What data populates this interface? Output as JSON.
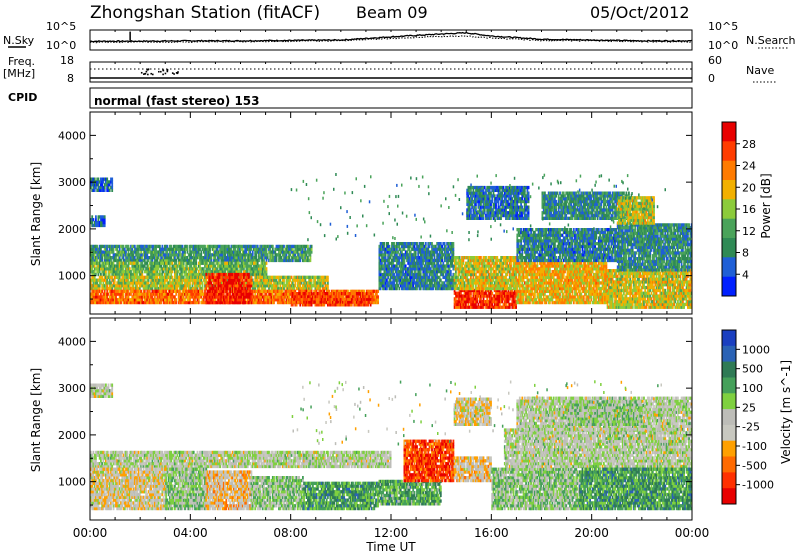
{
  "header": {
    "station": "Zhongshan Station (fitACF)",
    "beam": "Beam 09",
    "date": "05/Oct/2012"
  },
  "strip_labels": {
    "nsky": "N.Sky",
    "nsearch": "N.Search",
    "freq_line1": "Freq.",
    "freq_line2": "[MHz]",
    "nave": "Nave",
    "cpid": "CPID",
    "cpid_value": "normal (fast stereo) 153"
  },
  "chart_data": [
    {
      "type": "line",
      "panel": "noise",
      "left_ticks": [
        "10^5",
        "10^0"
      ],
      "right_ticks": [
        "10^5",
        "10^0"
      ],
      "x": [
        0,
        2,
        4,
        6,
        8,
        10,
        12,
        14,
        15,
        16,
        18,
        20,
        22,
        24
      ],
      "series": [
        {
          "name": "N.Sky",
          "values": [
            2.2,
            2.2,
            2.3,
            2.3,
            2.4,
            2.5,
            3.3,
            4.0,
            4.3,
            3.5,
            2.7,
            2.5,
            2.3,
            2.3
          ]
        },
        {
          "name": "N.Search",
          "values": [
            1.9,
            2.0,
            2.0,
            2.1,
            2.2,
            2.3,
            2.9,
            3.4,
            3.5,
            3.0,
            2.4,
            2.3,
            2.1,
            2.0
          ]
        }
      ],
      "ylim": [
        0,
        5
      ],
      "spikes_at": [
        1.6
      ]
    },
    {
      "type": "line",
      "panel": "frequency",
      "left_ticks": [
        "18",
        "8"
      ],
      "right_ticks": [
        "60",
        "0"
      ],
      "ylim": [
        8,
        18
      ],
      "series": [
        {
          "name": "Freq.",
          "values": [
            10,
            10,
            10,
            10,
            10,
            10,
            10,
            10,
            10,
            10,
            10,
            10,
            10,
            10
          ]
        },
        {
          "name": "Nave",
          "values": [
            14.5,
            14.5,
            14.5,
            14.5,
            14.5,
            14.5,
            14.5,
            14.5,
            14.5,
            14.5,
            14.5,
            14.5,
            14.5,
            14.5
          ]
        }
      ],
      "x": [
        0,
        2,
        4,
        6,
        8,
        10,
        12,
        14,
        15,
        16,
        18,
        20,
        22,
        24
      ]
    },
    {
      "type": "heatmap",
      "panel": "power",
      "ylabel": "Slant Range [km]",
      "yticks": [
        1000,
        2000,
        3000,
        4000
      ],
      "ylim": [
        180,
        4500
      ],
      "xlim": [
        0,
        24
      ],
      "colorbar_label": "Power [dB]",
      "colorbar_ticks": [
        "28",
        "24",
        "20",
        "16",
        "12",
        "8",
        "4"
      ],
      "colorbar_colors": [
        "#0020ff",
        "#1f5fd6",
        "#2f8a55",
        "#4aa35a",
        "#8ccb3b",
        "#f2b000",
        "#ff7b00",
        "#ff3c00",
        "#e80000"
      ],
      "vmin": 0,
      "vmax": 32,
      "bands": [
        {
          "t0": 0.0,
          "t1": 0.9,
          "r0": 2800,
          "r1": 3100,
          "v": 6
        },
        {
          "t0": 0.0,
          "t1": 0.6,
          "r0": 2050,
          "r1": 2250,
          "v": 6
        },
        {
          "t0": 0.0,
          "t1": 8.8,
          "r0": 1300,
          "r1": 1650,
          "v": 10
        },
        {
          "t0": 0.0,
          "t1": 7.0,
          "r0": 1000,
          "r1": 1300,
          "v": 14
        },
        {
          "t0": 0.0,
          "t1": 9.5,
          "r0": 700,
          "r1": 1000,
          "v": 17
        },
        {
          "t0": 0.0,
          "t1": 11.5,
          "r0": 400,
          "r1": 700,
          "v": 24
        },
        {
          "t0": 4.6,
          "t1": 6.4,
          "r0": 400,
          "r1": 1050,
          "v": 29
        },
        {
          "t0": 8.0,
          "t1": 11.2,
          "r0": 350,
          "r1": 600,
          "v": 27
        },
        {
          "t0": 11.5,
          "t1": 14.5,
          "r0": 700,
          "r1": 1700,
          "v": 8
        },
        {
          "t0": 14.5,
          "t1": 17.0,
          "r0": 300,
          "r1": 700,
          "v": 28
        },
        {
          "t0": 14.5,
          "t1": 17.0,
          "r0": 700,
          "r1": 1400,
          "v": 18
        },
        {
          "t0": 15.0,
          "t1": 17.5,
          "r0": 2200,
          "r1": 2900,
          "v": 7
        },
        {
          "t0": 17.0,
          "t1": 20.6,
          "r0": 400,
          "r1": 1300,
          "v": 20
        },
        {
          "t0": 17.0,
          "t1": 21.0,
          "r0": 1300,
          "r1": 2000,
          "v": 8
        },
        {
          "t0": 18.0,
          "t1": 21.5,
          "r0": 2200,
          "r1": 2800,
          "v": 9
        },
        {
          "t0": 20.6,
          "t1": 24.0,
          "r0": 300,
          "r1": 1100,
          "v": 18
        },
        {
          "t0": 21.0,
          "t1": 24.0,
          "r0": 1100,
          "r1": 2100,
          "v": 9
        },
        {
          "t0": 21.0,
          "t1": 22.5,
          "r0": 2100,
          "r1": 2700,
          "v": 17
        }
      ]
    },
    {
      "type": "heatmap",
      "panel": "velocity",
      "ylabel": "Slant Range [km]",
      "xlabel": "Time UT",
      "xticks": [
        "00:00",
        "04:00",
        "08:00",
        "12:00",
        "16:00",
        "20:00",
        "00:00"
      ],
      "yticks": [
        1000,
        2000,
        3000,
        4000
      ],
      "ylim": [
        180,
        4500
      ],
      "xlim": [
        0,
        24
      ],
      "colorbar_label": "Velocity [m s^-1]",
      "colorbar_ticks": [
        "1000",
        "500",
        "100",
        "25",
        "-25",
        "-100",
        "-500",
        "-1000"
      ],
      "colorbar_colors": [
        "#1a3fc0",
        "#2a62b5",
        "#2f7a55",
        "#45a05a",
        "#7fd040",
        "#bdbdb8",
        "#c8c8c0",
        "#ffa000",
        "#ff6a00",
        "#ff3000",
        "#e80000"
      ],
      "vmin": -1000,
      "vmax": 1000,
      "bands": [
        {
          "t0": 0.0,
          "t1": 0.9,
          "r0": 2800,
          "r1": 3100,
          "v": 0
        },
        {
          "t0": 0.0,
          "t1": 12.0,
          "r0": 1300,
          "r1": 1650,
          "v": 0
        },
        {
          "t0": 0.0,
          "t1": 3.0,
          "r0": 400,
          "r1": 1300,
          "v": -150
        },
        {
          "t0": 3.0,
          "t1": 4.6,
          "r0": 400,
          "r1": 1300,
          "v": 150
        },
        {
          "t0": 4.6,
          "t1": 6.4,
          "r0": 400,
          "r1": 1200,
          "v": -250
        },
        {
          "t0": 6.4,
          "t1": 8.5,
          "r0": 400,
          "r1": 1100,
          "v": 150
        },
        {
          "t0": 8.5,
          "t1": 11.5,
          "r0": 400,
          "r1": 1000,
          "v": 400
        },
        {
          "t0": 11.5,
          "t1": 14.0,
          "r0": 500,
          "r1": 1000,
          "v": 350
        },
        {
          "t0": 12.5,
          "t1": 14.5,
          "r0": 1000,
          "r1": 1900,
          "v": -700
        },
        {
          "t0": 14.5,
          "t1": 16.0,
          "r0": 1000,
          "r1": 1500,
          "v": -200
        },
        {
          "t0": 14.5,
          "t1": 16.0,
          "r0": 2200,
          "r1": 2800,
          "v": -150
        },
        {
          "t0": 16.0,
          "t1": 19.5,
          "r0": 400,
          "r1": 1300,
          "v": 150
        },
        {
          "t0": 16.5,
          "t1": 24.0,
          "r0": 1300,
          "r1": 2100,
          "v": 0
        },
        {
          "t0": 17.0,
          "t1": 24.0,
          "r0": 2100,
          "r1": 2800,
          "v": 0
        },
        {
          "t0": 19.5,
          "t1": 24.0,
          "r0": 400,
          "r1": 1300,
          "v": 400
        },
        {
          "t0": 19.0,
          "t1": 22.0,
          "r0": 2200,
          "r1": 2700,
          "v": 120
        }
      ]
    }
  ]
}
